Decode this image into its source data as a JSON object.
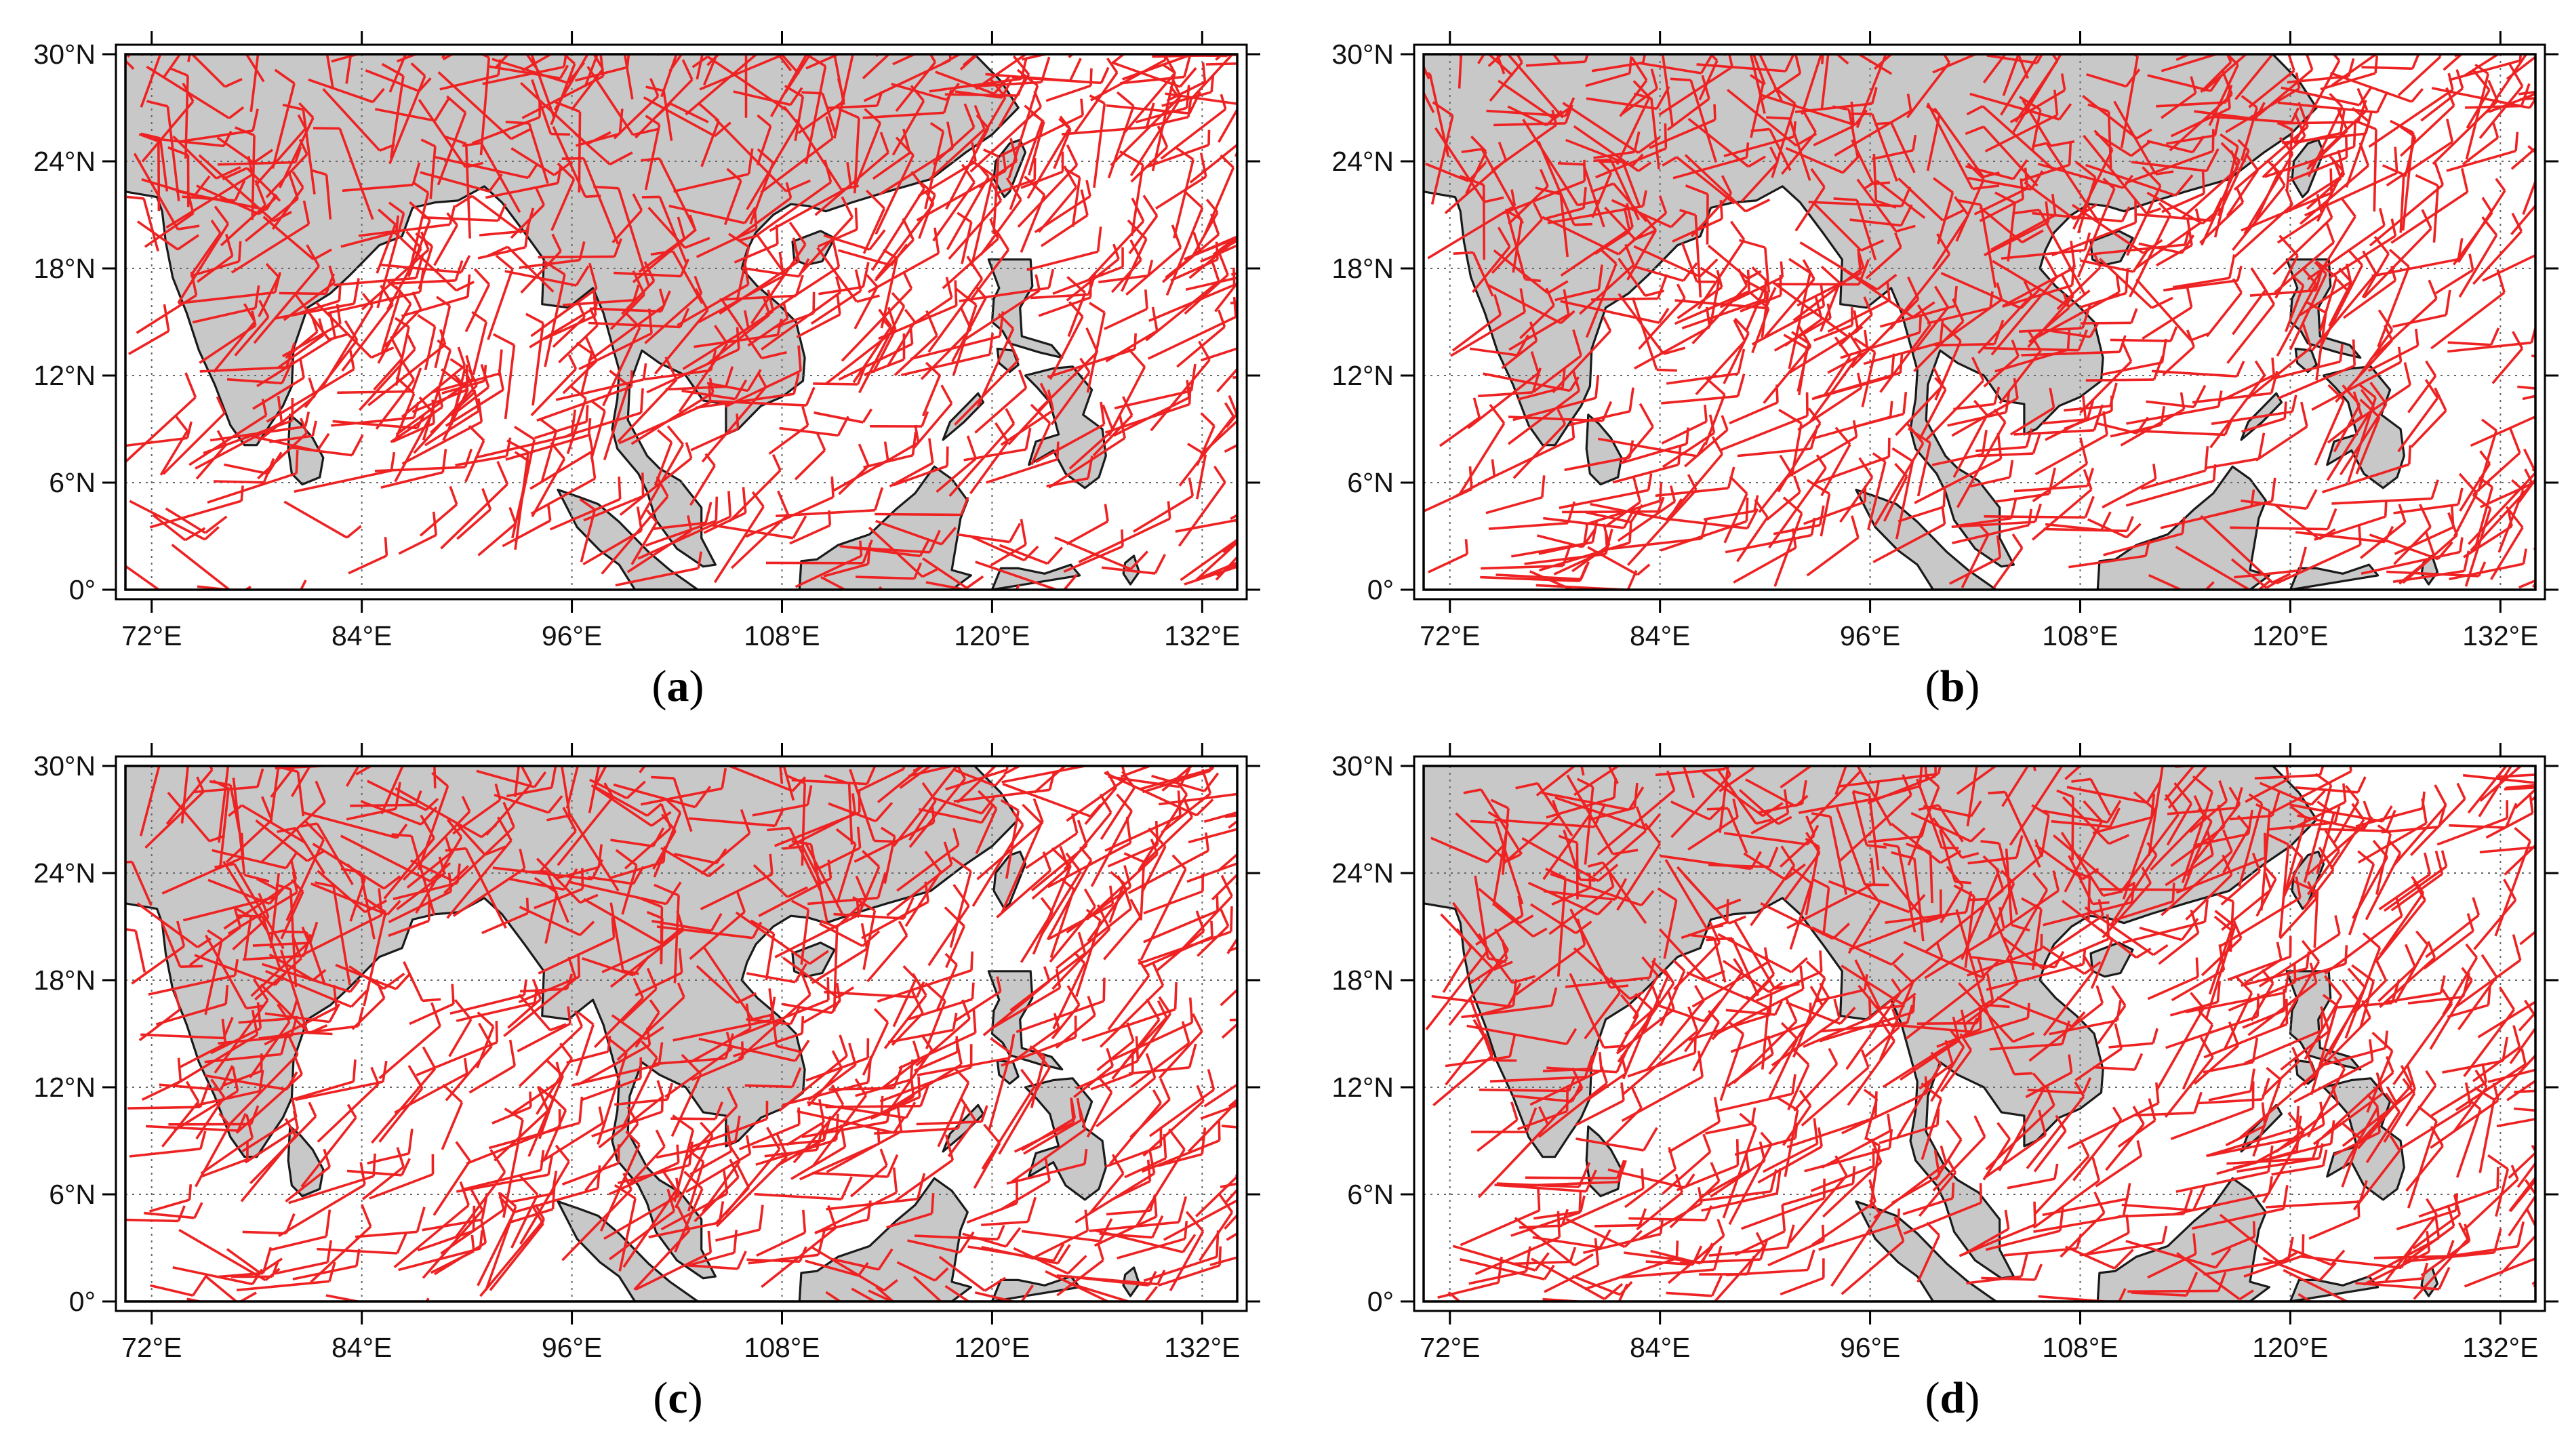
{
  "figure": {
    "panels": [
      {
        "id": "a",
        "label": "a",
        "seed": 11
      },
      {
        "id": "b",
        "label": "b",
        "seed": 23
      },
      {
        "id": "c",
        "label": "c",
        "seed": 37
      },
      {
        "id": "d",
        "label": "d",
        "seed": 53
      }
    ],
    "lat_ticks": [
      "0°",
      "6°N",
      "12°N",
      "18°N",
      "24°N",
      "30°N"
    ],
    "lon_ticks": [
      "72°E",
      "84°E",
      "96°E",
      "108°E",
      "120°E",
      "132°E"
    ],
    "lat_values": [
      0,
      6,
      12,
      18,
      24,
      30
    ],
    "lon_values": [
      72,
      84,
      96,
      108,
      120,
      132
    ],
    "lon_range": [
      70.5,
      134
    ],
    "lat_range": [
      0,
      30
    ],
    "colors": {
      "vectors": "#ee2222",
      "land": "#c8c8c8",
      "coast": "#1a1a1a",
      "grid": "#666666",
      "frame": "#000000"
    }
  }
}
